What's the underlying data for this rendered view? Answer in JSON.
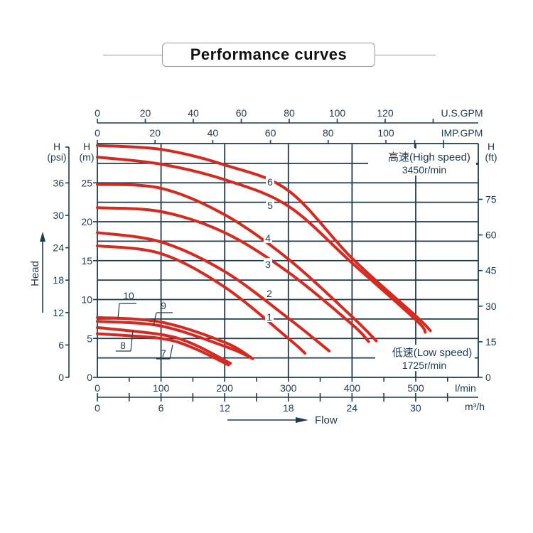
{
  "title": "Performance curves",
  "chart_data": {
    "type": "line",
    "title": "Performance curves",
    "xlabel": "Flow",
    "ylabel": "Head",
    "xlim": [
      0,
      598
    ],
    "ylim": [
      0,
      30
    ],
    "grid": true,
    "x_unit": "l/min",
    "y_unit_label": [
      "H",
      "(m)"
    ],
    "x_ticks": [
      0,
      100,
      200,
      300,
      400,
      500
    ],
    "y_ticks": [
      0,
      5,
      10,
      15,
      20,
      25
    ],
    "axes": {
      "us_gpm": {
        "label": "U.S.GPM",
        "ticks": [
          0,
          20,
          40,
          60,
          80,
          100,
          120
        ]
      },
      "imp_gpm": {
        "label": "IMP.GPM",
        "ticks": [
          0,
          20,
          40,
          60,
          80,
          100
        ]
      },
      "psi": {
        "label": [
          "H",
          "(psi)"
        ],
        "ticks": [
          0,
          6,
          12,
          18,
          24,
          30,
          36
        ]
      },
      "ft": {
        "label": [
          "H",
          "(ft)"
        ],
        "ticks": [
          0,
          15,
          30,
          45,
          60,
          75
        ]
      },
      "m3h": {
        "label": "m³/h",
        "ticks": [
          0,
          6,
          12,
          18,
          24,
          30
        ]
      }
    },
    "annotations": {
      "high_speed": "高速(High speed)",
      "high_rpm": "3450r/min",
      "low_speed": "低速(Low speed)",
      "low_rpm": "1725r/min"
    },
    "series": [
      {
        "name": "1",
        "x": [
          0,
          100,
          200,
          300,
          326
        ],
        "y": [
          16.9,
          15.9,
          11.6,
          5.0,
          3.1
        ]
      },
      {
        "name": "2",
        "x": [
          0,
          100,
          200,
          300,
          364
        ],
        "y": [
          18.6,
          17.4,
          13.6,
          7.6,
          3.4
        ]
      },
      {
        "name": "3",
        "x": [
          0,
          100,
          200,
          300,
          400,
          426
        ],
        "y": [
          21.8,
          21.3,
          18.6,
          13.5,
          6.8,
          4.6
        ]
      },
      {
        "name": "4",
        "x": [
          0,
          100,
          200,
          300,
          400,
          438
        ],
        "y": [
          24.8,
          24.3,
          20.9,
          15.2,
          7.8,
          4.7
        ]
      },
      {
        "name": "5",
        "x": [
          0,
          100,
          200,
          300,
          400,
          500,
          515
        ],
        "y": [
          28.3,
          27.4,
          25.4,
          22.0,
          14.7,
          7.4,
          5.8
        ]
      },
      {
        "name": "6",
        "x": [
          0,
          100,
          200,
          300,
          400,
          500,
          523
        ],
        "y": [
          29.8,
          29.3,
          27.3,
          24.0,
          15.3,
          7.9,
          6.0
        ]
      },
      {
        "name": "7",
        "x": [
          0,
          100,
          150,
          206
        ],
        "y": [
          5.6,
          5.0,
          3.8,
          1.6
        ]
      },
      {
        "name": "8",
        "x": [
          0,
          100,
          150,
          209
        ],
        "y": [
          6.4,
          5.5,
          4.3,
          1.8
        ]
      },
      {
        "name": "9",
        "x": [
          0,
          100,
          200,
          240
        ],
        "y": [
          7.2,
          6.6,
          4.0,
          2.6
        ]
      },
      {
        "name": "10",
        "x": [
          0,
          100,
          200,
          244
        ],
        "y": [
          7.7,
          7.1,
          4.5,
          2.4
        ]
      }
    ],
    "series_color": "#d42a20"
  }
}
